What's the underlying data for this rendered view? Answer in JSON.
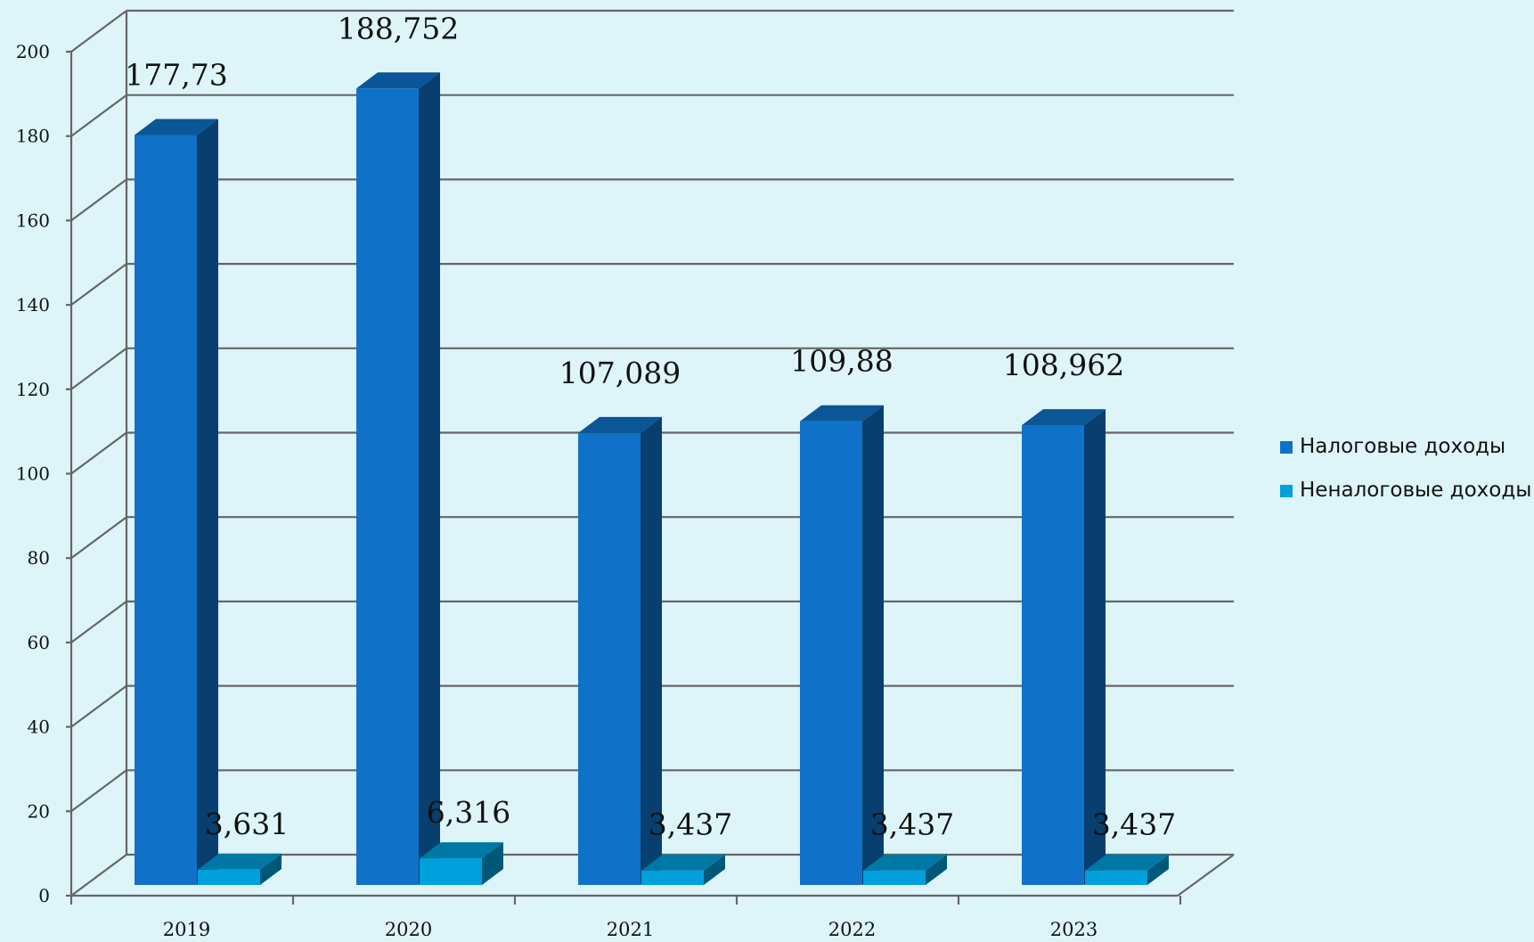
{
  "chart_data": {
    "type": "bar",
    "title": "",
    "xlabel": "",
    "ylabel": "",
    "categories": [
      "2019",
      "2020",
      "2021",
      "2022",
      "2023"
    ],
    "series": [
      {
        "name": "Налоговые доходы",
        "values": [
          177.73,
          188.752,
          107.089,
          109.88,
          108.962
        ],
        "labels": [
          "177,73",
          "188,752",
          "107,089",
          "109,88",
          "108,962"
        ],
        "color": "#0f72c8"
      },
      {
        "name": "Неналоговые доходы",
        "values": [
          3.631,
          6.316,
          3.437,
          3.437,
          3.437
        ],
        "labels": [
          "3,631",
          "6,316",
          "3,437",
          "3,437",
          "3,437"
        ],
        "color": "#00a0dc"
      }
    ],
    "y_ticks": [
      "0",
      "20",
      "40",
      "60",
      "80",
      "100",
      "120",
      "140",
      "160",
      "180",
      "200"
    ],
    "ylim": [
      0,
      200
    ],
    "grid": true,
    "legend_position": "right",
    "style": "3d-bar"
  }
}
